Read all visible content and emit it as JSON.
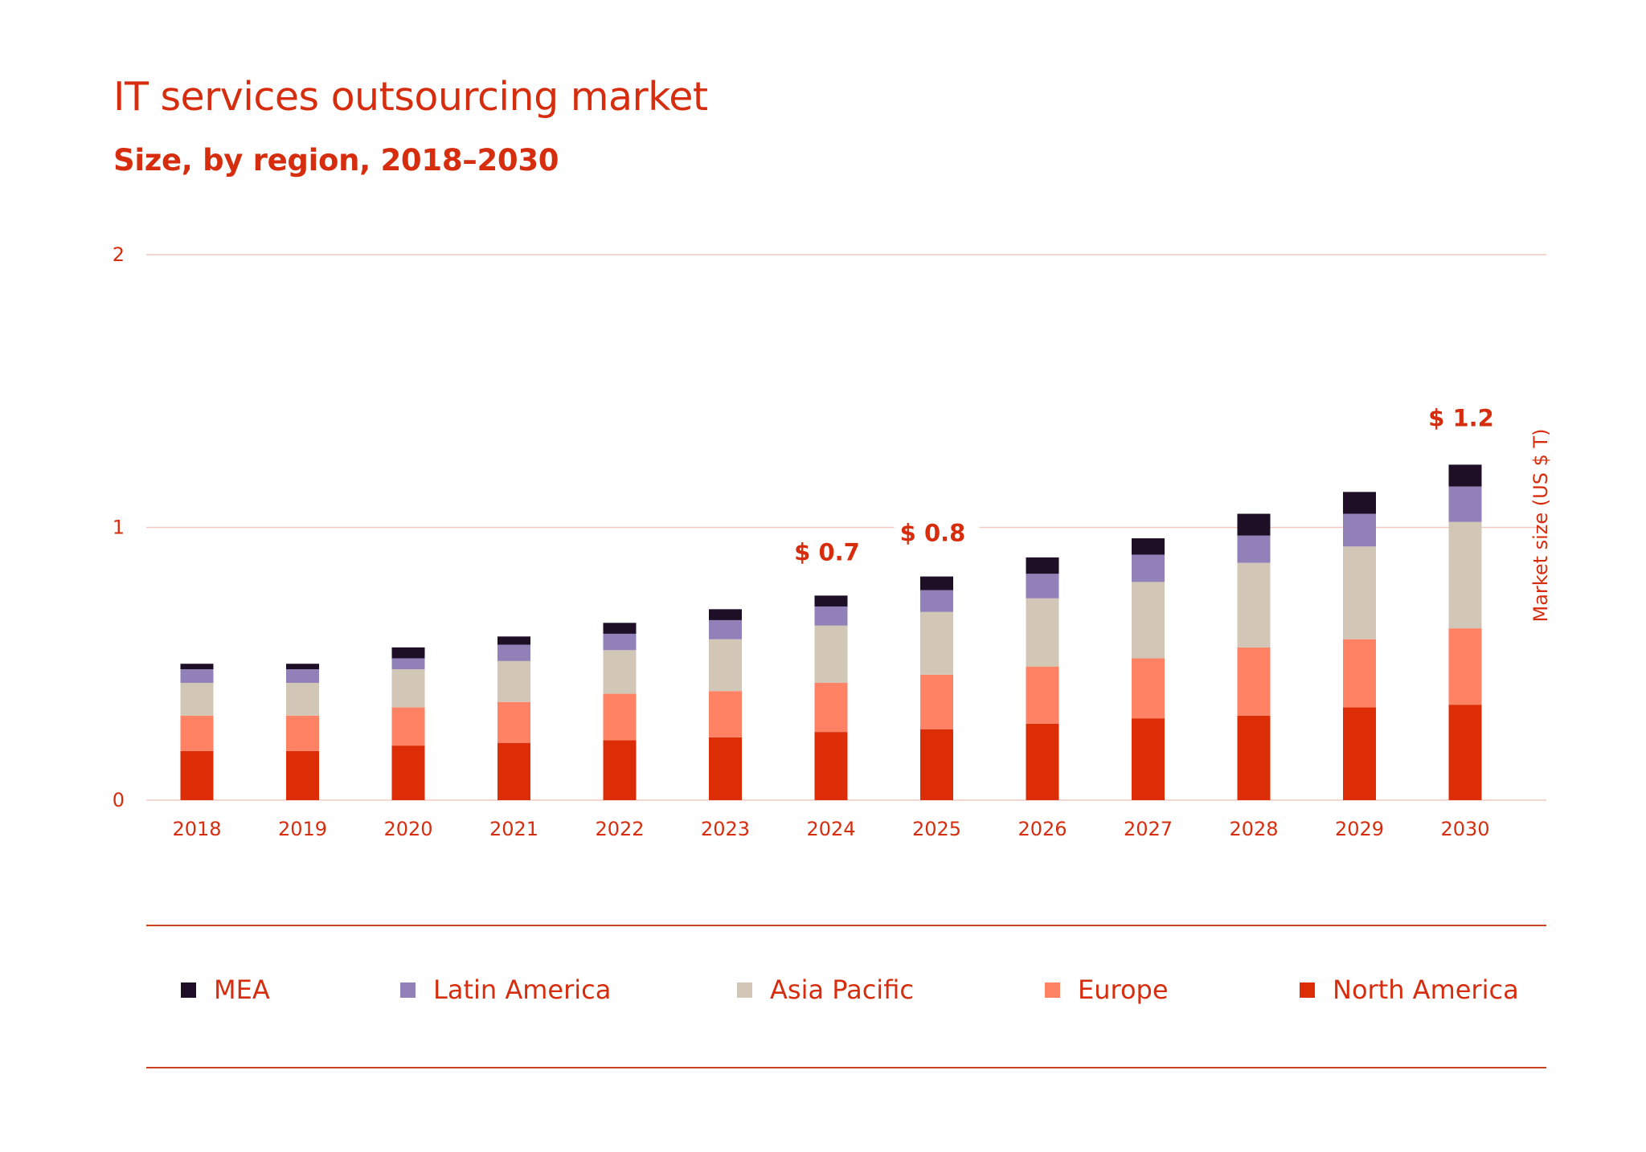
{
  "header": {
    "title": "IT services outsourcing market",
    "subtitle": "Size, by region, 2018–2030"
  },
  "colors": {
    "text": "#d62d0e",
    "grid": "#f3c9c2",
    "rule": "#c9431f"
  },
  "chart_data": {
    "type": "bar",
    "stacked": true,
    "categories": [
      "2018",
      "2019",
      "2020",
      "2021",
      "2022",
      "2023",
      "2024",
      "2025",
      "2026",
      "2027",
      "2028",
      "2029",
      "2030"
    ],
    "ylabel": "Market size (US $ T)",
    "ylim": [
      0,
      2
    ],
    "yticks": [
      "0",
      "1",
      "2"
    ],
    "grid": true,
    "legend_position": "bottom",
    "series": [
      {
        "name": "North America",
        "color": "#dc2d06",
        "values": [
          0.18,
          0.18,
          0.2,
          0.21,
          0.22,
          0.23,
          0.25,
          0.26,
          0.28,
          0.3,
          0.31,
          0.34,
          0.35
        ]
      },
      {
        "name": "Europe",
        "color": "#ff8265",
        "values": [
          0.13,
          0.13,
          0.14,
          0.15,
          0.17,
          0.17,
          0.18,
          0.2,
          0.21,
          0.22,
          0.25,
          0.25,
          0.28
        ]
      },
      {
        "name": "Asia Pacific",
        "color": "#d2c7b6",
        "values": [
          0.12,
          0.12,
          0.14,
          0.15,
          0.16,
          0.19,
          0.21,
          0.23,
          0.25,
          0.28,
          0.31,
          0.34,
          0.39
        ]
      },
      {
        "name": "Latin America",
        "color": "#9280b8",
        "values": [
          0.05,
          0.05,
          0.04,
          0.06,
          0.06,
          0.07,
          0.07,
          0.08,
          0.09,
          0.1,
          0.1,
          0.12,
          0.13
        ]
      },
      {
        "name": "MEA",
        "color": "#1e0f26",
        "values": [
          0.02,
          0.02,
          0.04,
          0.03,
          0.04,
          0.04,
          0.04,
          0.05,
          0.06,
          0.06,
          0.08,
          0.08,
          0.08
        ]
      }
    ],
    "annotations": [
      {
        "category": "2024",
        "text": "$ 0.7"
      },
      {
        "category": "2025",
        "text": "$ 0.8"
      },
      {
        "category": "2030",
        "text": "$ 1.2"
      }
    ]
  },
  "legend": {
    "items": [
      {
        "label": "MEA",
        "color": "#1e0f26"
      },
      {
        "label": "Latin America",
        "color": "#9280b8"
      },
      {
        "label": "Asia Pacific",
        "color": "#d2c7b6"
      },
      {
        "label": "Europe",
        "color": "#ff8265"
      },
      {
        "label": "North America",
        "color": "#dc2d06"
      }
    ]
  }
}
